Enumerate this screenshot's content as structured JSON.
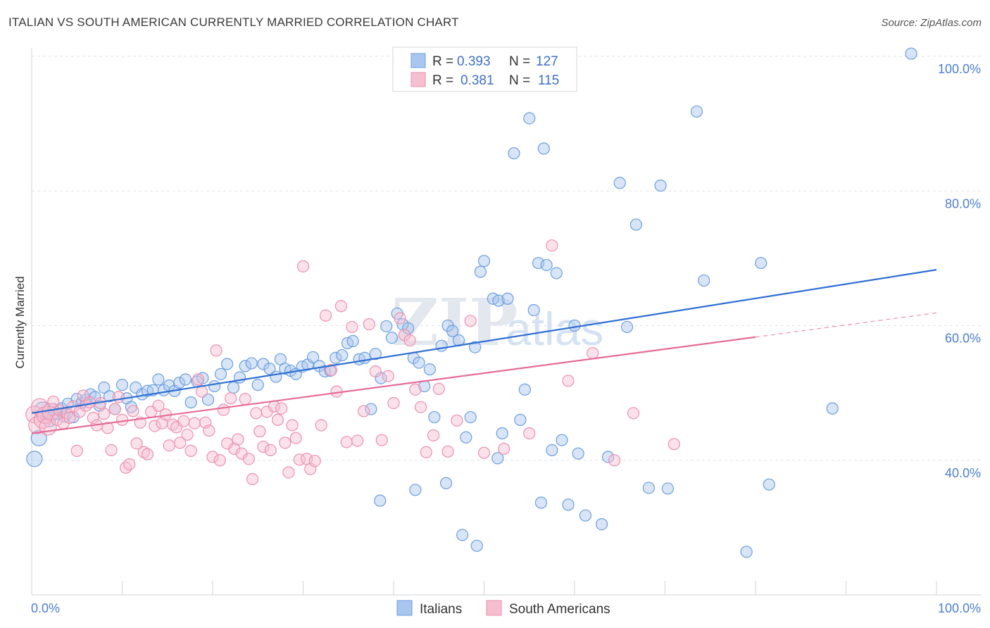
{
  "title": "ITALIAN VS SOUTH AMERICAN CURRENTLY MARRIED CORRELATION CHART",
  "source": "Source: ZipAtlas.com",
  "watermark": {
    "zip": "ZIP",
    "atlas": "atlas"
  },
  "colors": {
    "blue_fill": "#a9c6ee",
    "blue_stroke": "#6a9fe0",
    "blue_line": "#2f6fd3",
    "pink_fill": "#f6bfd0",
    "pink_stroke": "#ee8fae",
    "pink_line": "#e66b98",
    "axis_text": "#4a7fd4",
    "grid": "#dde2ea"
  },
  "legend": {
    "rows": [
      {
        "r_label": "R =",
        "r_value": "0.393",
        "n_label": "N =",
        "n_value": "127",
        "series": "blue"
      },
      {
        "r_label": "R =",
        "r_value": "0.381",
        "n_label": "N =",
        "n_value": "115",
        "series": "pink"
      }
    ]
  },
  "bottom_legend": [
    "Italians",
    "South Americans"
  ],
  "chart_data": {
    "type": "scatter",
    "title": "ITALIAN VS SOUTH AMERICAN CURRENTLY MARRIED CORRELATION CHART",
    "xlabel": "",
    "ylabel": "Currently Married",
    "xlim": [
      0,
      100
    ],
    "ylim": [
      20,
      100
    ],
    "x_tick_labels": [
      "0.0%",
      "100.0%"
    ],
    "y_tick_labels": [
      "100.0%",
      "80.0%",
      "60.0%",
      "40.0%"
    ],
    "y_ticks": [
      100,
      80,
      60,
      40
    ],
    "grid": "horizontal dashed",
    "legend_position": "top-center",
    "series": [
      {
        "name": "Italians",
        "color": "#a9c6ee",
        "trend": {
          "x": [
            0,
            100
          ],
          "y": [
            47.0,
            68.3
          ]
        },
        "points": [
          [
            0.3,
            40.2
          ],
          [
            0.8,
            43.3
          ],
          [
            1.2,
            47.5
          ],
          [
            1.6,
            46.3
          ],
          [
            2.0,
            45.8
          ],
          [
            2.4,
            47.6
          ],
          [
            2.8,
            46.9
          ],
          [
            3.3,
            47.7
          ],
          [
            3.6,
            46.5
          ],
          [
            4.0,
            48.4
          ],
          [
            4.6,
            46.4
          ],
          [
            5.0,
            49.1
          ],
          [
            5.5,
            48.5
          ],
          [
            6.0,
            49.0
          ],
          [
            6.5,
            49.8
          ],
          [
            7.0,
            49.4
          ],
          [
            7.5,
            48.1
          ],
          [
            8.0,
            50.8
          ],
          [
            8.6,
            49.5
          ],
          [
            9.2,
            47.6
          ],
          [
            10.0,
            51.2
          ],
          [
            10.5,
            49.2
          ],
          [
            11.0,
            47.9
          ],
          [
            11.5,
            50.8
          ],
          [
            12.2,
            49.8
          ],
          [
            12.8,
            50.3
          ],
          [
            13.4,
            50.4
          ],
          [
            14.0,
            52.0
          ],
          [
            14.6,
            50.4
          ],
          [
            15.2,
            51.1
          ],
          [
            15.8,
            50.3
          ],
          [
            16.3,
            51.5
          ],
          [
            17.0,
            52.0
          ],
          [
            17.6,
            48.6
          ],
          [
            18.3,
            51.7
          ],
          [
            18.9,
            52.2
          ],
          [
            19.5,
            49.0
          ],
          [
            20.2,
            51.0
          ],
          [
            20.9,
            52.8
          ],
          [
            21.6,
            54.3
          ],
          [
            22.3,
            50.8
          ],
          [
            23.0,
            52.3
          ],
          [
            23.6,
            54.0
          ],
          [
            24.3,
            54.4
          ],
          [
            25.0,
            51.2
          ],
          [
            25.6,
            54.3
          ],
          [
            26.3,
            53.6
          ],
          [
            27.0,
            52.4
          ],
          [
            27.5,
            55.0
          ],
          [
            28.0,
            53.6
          ],
          [
            28.6,
            53.3
          ],
          [
            29.2,
            52.8
          ],
          [
            29.9,
            53.9
          ],
          [
            30.5,
            54.2
          ],
          [
            31.1,
            55.3
          ],
          [
            31.8,
            54.0
          ],
          [
            32.4,
            53.2
          ],
          [
            33.0,
            53.3
          ],
          [
            33.6,
            55.2
          ],
          [
            34.3,
            55.6
          ],
          [
            34.9,
            57.4
          ],
          [
            35.5,
            57.7
          ],
          [
            36.2,
            55.0
          ],
          [
            36.8,
            55.2
          ],
          [
            37.5,
            47.6
          ],
          [
            38.0,
            55.8
          ],
          [
            38.6,
            52.2
          ],
          [
            39.2,
            59.9
          ],
          [
            39.8,
            58.2
          ],
          [
            40.4,
            61.8
          ],
          [
            41.0,
            60.2
          ],
          [
            41.6,
            59.6
          ],
          [
            42.2,
            55.2
          ],
          [
            42.8,
            54.5
          ],
          [
            43.4,
            51.0
          ],
          [
            44.0,
            53.5
          ],
          [
            44.5,
            46.4
          ],
          [
            45.3,
            57.0
          ],
          [
            46.0,
            60.0
          ],
          [
            46.5,
            59.2
          ],
          [
            47.2,
            57.8
          ],
          [
            48.0,
            43.4
          ],
          [
            48.5,
            46.4
          ],
          [
            49.0,
            56.8
          ],
          [
            49.6,
            68.0
          ],
          [
            50.0,
            69.6
          ],
          [
            51.0,
            64.0
          ],
          [
            51.6,
            63.7
          ],
          [
            52.0,
            44.0
          ],
          [
            52.6,
            64.0
          ],
          [
            53.3,
            85.6
          ],
          [
            54.0,
            46.0
          ],
          [
            54.5,
            50.5
          ],
          [
            55.0,
            90.8
          ],
          [
            55.5,
            62.3
          ],
          [
            56.0,
            69.3
          ],
          [
            56.6,
            86.3
          ],
          [
            56.9,
            69.0
          ],
          [
            57.5,
            41.5
          ],
          [
            58.0,
            67.8
          ],
          [
            58.6,
            43.0
          ],
          [
            59.3,
            33.4
          ],
          [
            60.0,
            60.0
          ],
          [
            61.2,
            31.8
          ],
          [
            63.0,
            30.5
          ],
          [
            65.0,
            81.2
          ],
          [
            65.8,
            59.8
          ],
          [
            66.8,
            75.0
          ],
          [
            68.2,
            35.9
          ],
          [
            69.5,
            80.8
          ],
          [
            70.3,
            35.8
          ],
          [
            73.5,
            91.8
          ],
          [
            74.3,
            66.7
          ],
          [
            79.0,
            26.4
          ],
          [
            80.6,
            69.3
          ],
          [
            81.5,
            36.4
          ],
          [
            88.5,
            47.7
          ],
          [
            97.2,
            100.4
          ],
          [
            38.5,
            34.0
          ],
          [
            42.4,
            35.6
          ],
          [
            45.8,
            36.6
          ],
          [
            47.6,
            28.9
          ],
          [
            60.4,
            41.0
          ],
          [
            51.5,
            40.3
          ],
          [
            56.3,
            33.7
          ],
          [
            63.7,
            40.5
          ],
          [
            49.2,
            27.3
          ]
        ]
      },
      {
        "name": "South Americans",
        "color": "#f6bfd0",
        "trend": {
          "x": [
            0,
            80
          ],
          "y": [
            44.0,
            58.3
          ]
        },
        "trend_dashed": {
          "x": [
            80,
            100
          ],
          "y": [
            58.3,
            61.9
          ]
        },
        "points": [
          [
            0.3,
            46.8
          ],
          [
            0.6,
            45.2
          ],
          [
            0.9,
            47.9
          ],
          [
            1.2,
            46.0
          ],
          [
            1.5,
            46.7
          ],
          [
            1.8,
            45.0
          ],
          [
            2.1,
            47.2
          ],
          [
            2.4,
            48.7
          ],
          [
            2.8,
            46.0
          ],
          [
            3.1,
            47.4
          ],
          [
            3.5,
            45.5
          ],
          [
            3.9,
            47.0
          ],
          [
            4.2,
            46.3
          ],
          [
            4.6,
            48.0
          ],
          [
            5.0,
            41.4
          ],
          [
            5.3,
            47.2
          ],
          [
            5.7,
            49.6
          ],
          [
            6.0,
            48.1
          ],
          [
            6.4,
            48.6
          ],
          [
            6.8,
            46.3
          ],
          [
            7.2,
            45.2
          ],
          [
            7.6,
            48.5
          ],
          [
            8.0,
            46.9
          ],
          [
            8.4,
            44.8
          ],
          [
            8.8,
            41.5
          ],
          [
            9.2,
            47.6
          ],
          [
            9.6,
            49.4
          ],
          [
            10.0,
            46.0
          ],
          [
            10.4,
            38.9
          ],
          [
            10.8,
            39.4
          ],
          [
            11.2,
            47.3
          ],
          [
            11.6,
            42.5
          ],
          [
            12.0,
            45.6
          ],
          [
            12.4,
            41.2
          ],
          [
            12.8,
            40.9
          ],
          [
            13.2,
            47.2
          ],
          [
            13.6,
            45.1
          ],
          [
            14.0,
            48.1
          ],
          [
            14.4,
            45.5
          ],
          [
            14.8,
            46.8
          ],
          [
            15.2,
            42.2
          ],
          [
            15.6,
            45.3
          ],
          [
            16.0,
            44.9
          ],
          [
            16.4,
            42.6
          ],
          [
            16.8,
            45.8
          ],
          [
            17.2,
            43.8
          ],
          [
            17.6,
            41.4
          ],
          [
            18.0,
            45.5
          ],
          [
            18.4,
            52.0
          ],
          [
            18.8,
            50.2
          ],
          [
            19.2,
            45.6
          ],
          [
            19.6,
            44.4
          ],
          [
            20.0,
            40.5
          ],
          [
            20.4,
            56.3
          ],
          [
            20.8,
            40.0
          ],
          [
            21.2,
            47.5
          ],
          [
            21.6,
            42.5
          ],
          [
            22.0,
            49.2
          ],
          [
            22.4,
            41.7
          ],
          [
            22.8,
            43.1
          ],
          [
            23.2,
            41.0
          ],
          [
            23.6,
            49.1
          ],
          [
            24.0,
            40.2
          ],
          [
            24.4,
            37.2
          ],
          [
            24.8,
            47.0
          ],
          [
            25.2,
            44.3
          ],
          [
            25.6,
            42.0
          ],
          [
            26.0,
            47.2
          ],
          [
            26.4,
            41.5
          ],
          [
            26.8,
            48.0
          ],
          [
            27.2,
            46.0
          ],
          [
            27.6,
            47.7
          ],
          [
            28.0,
            42.6
          ],
          [
            28.4,
            38.2
          ],
          [
            28.8,
            45.2
          ],
          [
            29.2,
            43.3
          ],
          [
            29.6,
            40.1
          ],
          [
            30.0,
            68.8
          ],
          [
            30.4,
            40.2
          ],
          [
            30.8,
            38.7
          ],
          [
            31.3,
            39.9
          ],
          [
            32.0,
            45.2
          ],
          [
            32.5,
            61.5
          ],
          [
            33.1,
            53.4
          ],
          [
            33.7,
            50.2
          ],
          [
            34.2,
            62.9
          ],
          [
            34.8,
            42.7
          ],
          [
            35.4,
            59.8
          ],
          [
            36.0,
            42.9
          ],
          [
            36.7,
            47.3
          ],
          [
            37.3,
            60.2
          ],
          [
            38.0,
            53.2
          ],
          [
            38.7,
            43.0
          ],
          [
            39.4,
            52.5
          ],
          [
            40.0,
            48.5
          ],
          [
            40.7,
            61.1
          ],
          [
            41.2,
            58.6
          ],
          [
            41.8,
            57.8
          ],
          [
            42.4,
            50.5
          ],
          [
            43.0,
            47.9
          ],
          [
            43.6,
            41.2
          ],
          [
            44.4,
            43.7
          ],
          [
            45.0,
            50.6
          ],
          [
            46.0,
            41.3
          ],
          [
            47.0,
            45.9
          ],
          [
            48.5,
            60.7
          ],
          [
            50.0,
            41.1
          ],
          [
            52.2,
            41.7
          ],
          [
            55.0,
            44.0
          ],
          [
            57.5,
            71.9
          ],
          [
            59.3,
            51.8
          ],
          [
            62.0,
            55.9
          ],
          [
            64.4,
            40.0
          ],
          [
            66.5,
            47.0
          ],
          [
            71.0,
            42.4
          ]
        ]
      }
    ]
  }
}
